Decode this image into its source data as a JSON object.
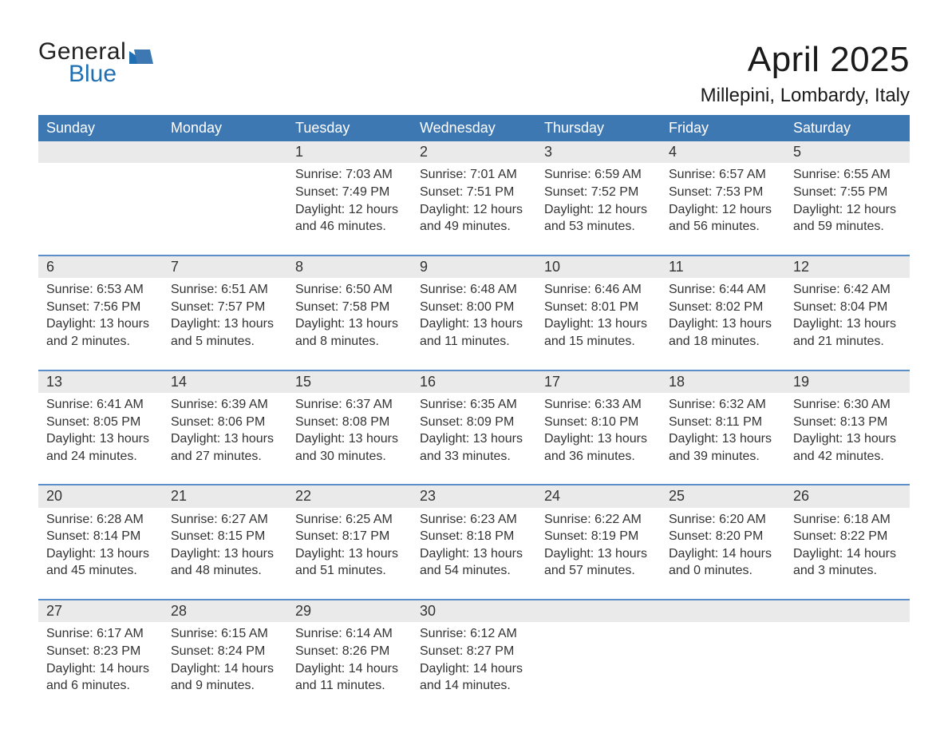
{
  "logo": {
    "line1": "General",
    "line2": "Blue"
  },
  "title": "April 2025",
  "location": "Millepini, Lombardy, Italy",
  "colors": {
    "header_bg": "#3e78b3",
    "accent_blue": "#1f6fb2",
    "daynum_bg": "#eaeaea",
    "rule_blue": "#5a8fc7",
    "text": "#333333",
    "page_bg": "#ffffff"
  },
  "weekdays": [
    "Sunday",
    "Monday",
    "Tuesday",
    "Wednesday",
    "Thursday",
    "Friday",
    "Saturday"
  ],
  "weeks": [
    [
      null,
      null,
      {
        "n": "1",
        "sr": "Sunrise: 7:03 AM",
        "ss": "Sunset: 7:49 PM",
        "dl": "Daylight: 12 hours and 46 minutes."
      },
      {
        "n": "2",
        "sr": "Sunrise: 7:01 AM",
        "ss": "Sunset: 7:51 PM",
        "dl": "Daylight: 12 hours and 49 minutes."
      },
      {
        "n": "3",
        "sr": "Sunrise: 6:59 AM",
        "ss": "Sunset: 7:52 PM",
        "dl": "Daylight: 12 hours and 53 minutes."
      },
      {
        "n": "4",
        "sr": "Sunrise: 6:57 AM",
        "ss": "Sunset: 7:53 PM",
        "dl": "Daylight: 12 hours and 56 minutes."
      },
      {
        "n": "5",
        "sr": "Sunrise: 6:55 AM",
        "ss": "Sunset: 7:55 PM",
        "dl": "Daylight: 12 hours and 59 minutes."
      }
    ],
    [
      {
        "n": "6",
        "sr": "Sunrise: 6:53 AM",
        "ss": "Sunset: 7:56 PM",
        "dl": "Daylight: 13 hours and 2 minutes."
      },
      {
        "n": "7",
        "sr": "Sunrise: 6:51 AM",
        "ss": "Sunset: 7:57 PM",
        "dl": "Daylight: 13 hours and 5 minutes."
      },
      {
        "n": "8",
        "sr": "Sunrise: 6:50 AM",
        "ss": "Sunset: 7:58 PM",
        "dl": "Daylight: 13 hours and 8 minutes."
      },
      {
        "n": "9",
        "sr": "Sunrise: 6:48 AM",
        "ss": "Sunset: 8:00 PM",
        "dl": "Daylight: 13 hours and 11 minutes."
      },
      {
        "n": "10",
        "sr": "Sunrise: 6:46 AM",
        "ss": "Sunset: 8:01 PM",
        "dl": "Daylight: 13 hours and 15 minutes."
      },
      {
        "n": "11",
        "sr": "Sunrise: 6:44 AM",
        "ss": "Sunset: 8:02 PM",
        "dl": "Daylight: 13 hours and 18 minutes."
      },
      {
        "n": "12",
        "sr": "Sunrise: 6:42 AM",
        "ss": "Sunset: 8:04 PM",
        "dl": "Daylight: 13 hours and 21 minutes."
      }
    ],
    [
      {
        "n": "13",
        "sr": "Sunrise: 6:41 AM",
        "ss": "Sunset: 8:05 PM",
        "dl": "Daylight: 13 hours and 24 minutes."
      },
      {
        "n": "14",
        "sr": "Sunrise: 6:39 AM",
        "ss": "Sunset: 8:06 PM",
        "dl": "Daylight: 13 hours and 27 minutes."
      },
      {
        "n": "15",
        "sr": "Sunrise: 6:37 AM",
        "ss": "Sunset: 8:08 PM",
        "dl": "Daylight: 13 hours and 30 minutes."
      },
      {
        "n": "16",
        "sr": "Sunrise: 6:35 AM",
        "ss": "Sunset: 8:09 PM",
        "dl": "Daylight: 13 hours and 33 minutes."
      },
      {
        "n": "17",
        "sr": "Sunrise: 6:33 AM",
        "ss": "Sunset: 8:10 PM",
        "dl": "Daylight: 13 hours and 36 minutes."
      },
      {
        "n": "18",
        "sr": "Sunrise: 6:32 AM",
        "ss": "Sunset: 8:11 PM",
        "dl": "Daylight: 13 hours and 39 minutes."
      },
      {
        "n": "19",
        "sr": "Sunrise: 6:30 AM",
        "ss": "Sunset: 8:13 PM",
        "dl": "Daylight: 13 hours and 42 minutes."
      }
    ],
    [
      {
        "n": "20",
        "sr": "Sunrise: 6:28 AM",
        "ss": "Sunset: 8:14 PM",
        "dl": "Daylight: 13 hours and 45 minutes."
      },
      {
        "n": "21",
        "sr": "Sunrise: 6:27 AM",
        "ss": "Sunset: 8:15 PM",
        "dl": "Daylight: 13 hours and 48 minutes."
      },
      {
        "n": "22",
        "sr": "Sunrise: 6:25 AM",
        "ss": "Sunset: 8:17 PM",
        "dl": "Daylight: 13 hours and 51 minutes."
      },
      {
        "n": "23",
        "sr": "Sunrise: 6:23 AM",
        "ss": "Sunset: 8:18 PM",
        "dl": "Daylight: 13 hours and 54 minutes."
      },
      {
        "n": "24",
        "sr": "Sunrise: 6:22 AM",
        "ss": "Sunset: 8:19 PM",
        "dl": "Daylight: 13 hours and 57 minutes."
      },
      {
        "n": "25",
        "sr": "Sunrise: 6:20 AM",
        "ss": "Sunset: 8:20 PM",
        "dl": "Daylight: 14 hours and 0 minutes."
      },
      {
        "n": "26",
        "sr": "Sunrise: 6:18 AM",
        "ss": "Sunset: 8:22 PM",
        "dl": "Daylight: 14 hours and 3 minutes."
      }
    ],
    [
      {
        "n": "27",
        "sr": "Sunrise: 6:17 AM",
        "ss": "Sunset: 8:23 PM",
        "dl": "Daylight: 14 hours and 6 minutes."
      },
      {
        "n": "28",
        "sr": "Sunrise: 6:15 AM",
        "ss": "Sunset: 8:24 PM",
        "dl": "Daylight: 14 hours and 9 minutes."
      },
      {
        "n": "29",
        "sr": "Sunrise: 6:14 AM",
        "ss": "Sunset: 8:26 PM",
        "dl": "Daylight: 14 hours and 11 minutes."
      },
      {
        "n": "30",
        "sr": "Sunrise: 6:12 AM",
        "ss": "Sunset: 8:27 PM",
        "dl": "Daylight: 14 hours and 14 minutes."
      },
      null,
      null,
      null
    ]
  ]
}
